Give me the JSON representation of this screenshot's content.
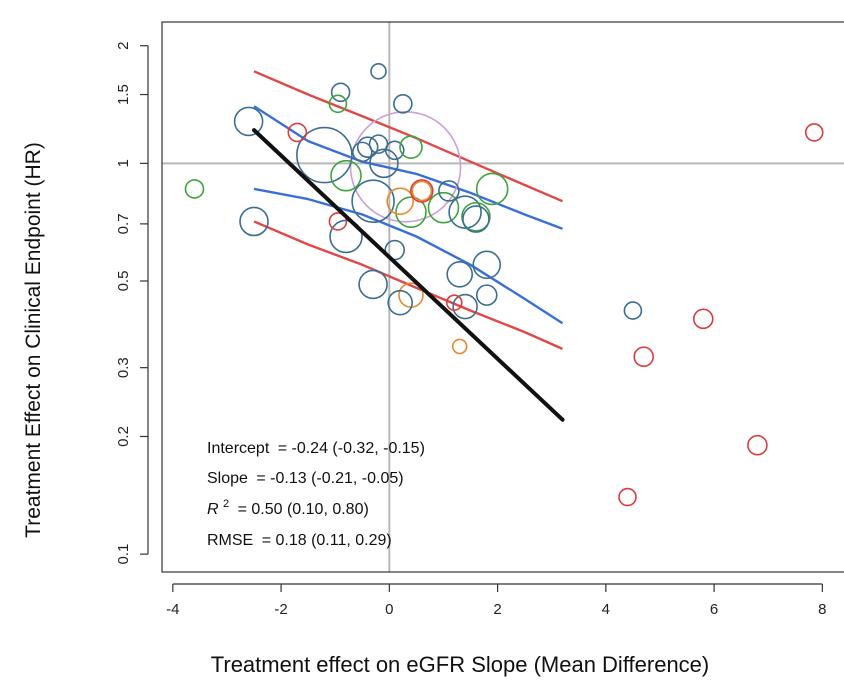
{
  "chart_data": {
    "type": "scatter",
    "title": "",
    "xlabel": "Treatment effect on eGFR Slope (Mean Difference)",
    "ylabel": "Treatment Effect on Clinical Endpoint (HR)",
    "xlim": [
      -4.2,
      8.4
    ],
    "ylim": [
      0.09,
      2.3
    ],
    "y_scale": "log",
    "x_ticks": [
      -4,
      -2,
      0,
      2,
      4,
      6,
      8
    ],
    "x_tick_labels": [
      "-4",
      "-2",
      "0",
      "2",
      "4",
      "6",
      "8"
    ],
    "y_ticks": [
      0.1,
      0.2,
      0.3,
      0.5,
      0.7,
      1,
      1.5,
      2
    ],
    "y_tick_labels": [
      "0.1",
      "0.2",
      "0.3",
      "0.5",
      "0.7",
      "1",
      "1.5",
      "2"
    ],
    "reference_lines": {
      "x": 0,
      "y": 1
    },
    "colors": {
      "blue": "#3c6e8f",
      "red": "#dc3c3c",
      "green": "#3fa33f",
      "orange": "#e58a2e",
      "purple": "#c9a0d6",
      "regression": "#111111",
      "ci_band": "#3a6fd8",
      "pi_band": "#e04848"
    },
    "points": [
      {
        "x": 0.3,
        "y": 0.98,
        "size": 100,
        "color": "purple"
      },
      {
        "x": -1.2,
        "y": 1.05,
        "size": 45,
        "color": "blue"
      },
      {
        "x": -0.3,
        "y": 0.8,
        "size": 32,
        "color": "blue"
      },
      {
        "x": -0.8,
        "y": 0.65,
        "size": 22,
        "color": "blue"
      },
      {
        "x": -0.8,
        "y": 0.93,
        "size": 20,
        "color": "green"
      },
      {
        "x": 0.4,
        "y": 0.75,
        "size": 20,
        "color": "green"
      },
      {
        "x": -0.1,
        "y": 1.0,
        "size": 18,
        "color": "blue"
      },
      {
        "x": 1.0,
        "y": 0.77,
        "size": 20,
        "color": "green"
      },
      {
        "x": 1.4,
        "y": 0.75,
        "size": 22,
        "color": "blue"
      },
      {
        "x": 1.6,
        "y": 0.73,
        "size": 18,
        "color": "green"
      },
      {
        "x": 1.9,
        "y": 0.86,
        "size": 21,
        "color": "green"
      },
      {
        "x": 1.6,
        "y": 0.72,
        "size": 16,
        "color": "blue"
      },
      {
        "x": -2.6,
        "y": 1.28,
        "size": 18,
        "color": "blue"
      },
      {
        "x": -2.5,
        "y": 0.71,
        "size": 18,
        "color": "blue"
      },
      {
        "x": -0.3,
        "y": 0.49,
        "size": 18,
        "color": "blue"
      },
      {
        "x": 1.8,
        "y": 0.55,
        "size": 17,
        "color": "blue"
      },
      {
        "x": 1.3,
        "y": 0.52,
        "size": 15,
        "color": "blue"
      },
      {
        "x": 1.4,
        "y": 0.43,
        "size": 14,
        "color": "blue"
      },
      {
        "x": 0.4,
        "y": 0.46,
        "size": 14,
        "color": "orange"
      },
      {
        "x": 0.2,
        "y": 0.44,
        "size": 14,
        "color": "blue"
      },
      {
        "x": 1.8,
        "y": 0.46,
        "size": 10,
        "color": "blue"
      },
      {
        "x": 0.2,
        "y": 0.8,
        "size": 16,
        "color": "orange"
      },
      {
        "x": 0.6,
        "y": 0.85,
        "size": 12,
        "color": "red"
      },
      {
        "x": 0.6,
        "y": 0.85,
        "size": 9,
        "color": "orange"
      },
      {
        "x": 1.1,
        "y": 0.85,
        "size": 10,
        "color": "blue"
      },
      {
        "x": 0.1,
        "y": 0.6,
        "size": 9,
        "color": "blue"
      },
      {
        "x": -0.4,
        "y": 1.1,
        "size": 10,
        "color": "blue"
      },
      {
        "x": -0.2,
        "y": 1.12,
        "size": 8,
        "color": "blue"
      },
      {
        "x": 0.1,
        "y": 1.08,
        "size": 8,
        "color": "blue"
      },
      {
        "x": -0.5,
        "y": 1.07,
        "size": 9,
        "color": "blue"
      },
      {
        "x": 0.4,
        "y": 1.1,
        "size": 12,
        "color": "green"
      },
      {
        "x": -0.9,
        "y": 1.52,
        "size": 8,
        "color": "blue"
      },
      {
        "x": -0.95,
        "y": 1.42,
        "size": 7,
        "color": "green"
      },
      {
        "x": 0.25,
        "y": 1.42,
        "size": 8,
        "color": "blue"
      },
      {
        "x": -0.2,
        "y": 1.72,
        "size": 5,
        "color": "blue"
      },
      {
        "x": -1.7,
        "y": 1.2,
        "size": 8,
        "color": "red"
      },
      {
        "x": -0.95,
        "y": 0.71,
        "size": 7,
        "color": "red"
      },
      {
        "x": 1.2,
        "y": 0.44,
        "size": 5,
        "color": "red"
      },
      {
        "x": -3.6,
        "y": 0.86,
        "size": 8,
        "color": "green"
      },
      {
        "x": 1.3,
        "y": 0.34,
        "size": 4,
        "color": "orange"
      },
      {
        "x": 4.5,
        "y": 0.42,
        "size": 7,
        "color": "blue"
      },
      {
        "x": 5.8,
        "y": 0.4,
        "size": 9,
        "color": "red"
      },
      {
        "x": 4.7,
        "y": 0.32,
        "size": 9,
        "color": "red"
      },
      {
        "x": 6.8,
        "y": 0.19,
        "size": 9,
        "color": "red"
      },
      {
        "x": 4.4,
        "y": 0.14,
        "size": 7,
        "color": "red"
      },
      {
        "x": 7.85,
        "y": 1.2,
        "size": 7,
        "color": "red"
      }
    ],
    "regression": {
      "x": [
        -2.5,
        3.2
      ],
      "intercept": -0.24,
      "slope": -0.13
    },
    "confidence_band": {
      "upper": {
        "x": [
          -2.5,
          -1.5,
          -0.5,
          0.5,
          1.5,
          2.5,
          3.2
        ],
        "y": [
          1.4,
          1.14,
          1.01,
          0.94,
          0.84,
          0.74,
          0.68
        ]
      },
      "lower": {
        "x": [
          -2.5,
          -1.5,
          -0.5,
          0.5,
          1.5,
          2.5,
          3.2
        ],
        "y": [
          0.86,
          0.81,
          0.74,
          0.65,
          0.55,
          0.45,
          0.39
        ]
      }
    },
    "prediction_band": {
      "upper": {
        "x": [
          -2.5,
          -1.5,
          -0.5,
          0.5,
          1.5,
          2.5,
          3.2
        ],
        "y": [
          1.72,
          1.5,
          1.32,
          1.16,
          1.01,
          0.88,
          0.8
        ]
      },
      "lower": {
        "x": [
          -2.5,
          -1.5,
          -0.5,
          0.5,
          1.5,
          2.5,
          3.2
        ],
        "y": [
          0.71,
          0.62,
          0.55,
          0.48,
          0.42,
          0.37,
          0.335
        ]
      }
    },
    "annotations": {
      "intercept_label": "Intercept",
      "intercept_value": "= -0.24 (-0.32, -0.15)",
      "slope_label": "Slope",
      "slope_value": "= -0.13 (-0.21, -0.05)",
      "r2_label": "R",
      "r2_sup": "2",
      "r2_value": "= 0.50 (0.10, 0.80)",
      "rmse_label": "RMSE",
      "rmse_value": "= 0.18 (0.11, 0.29)"
    }
  }
}
